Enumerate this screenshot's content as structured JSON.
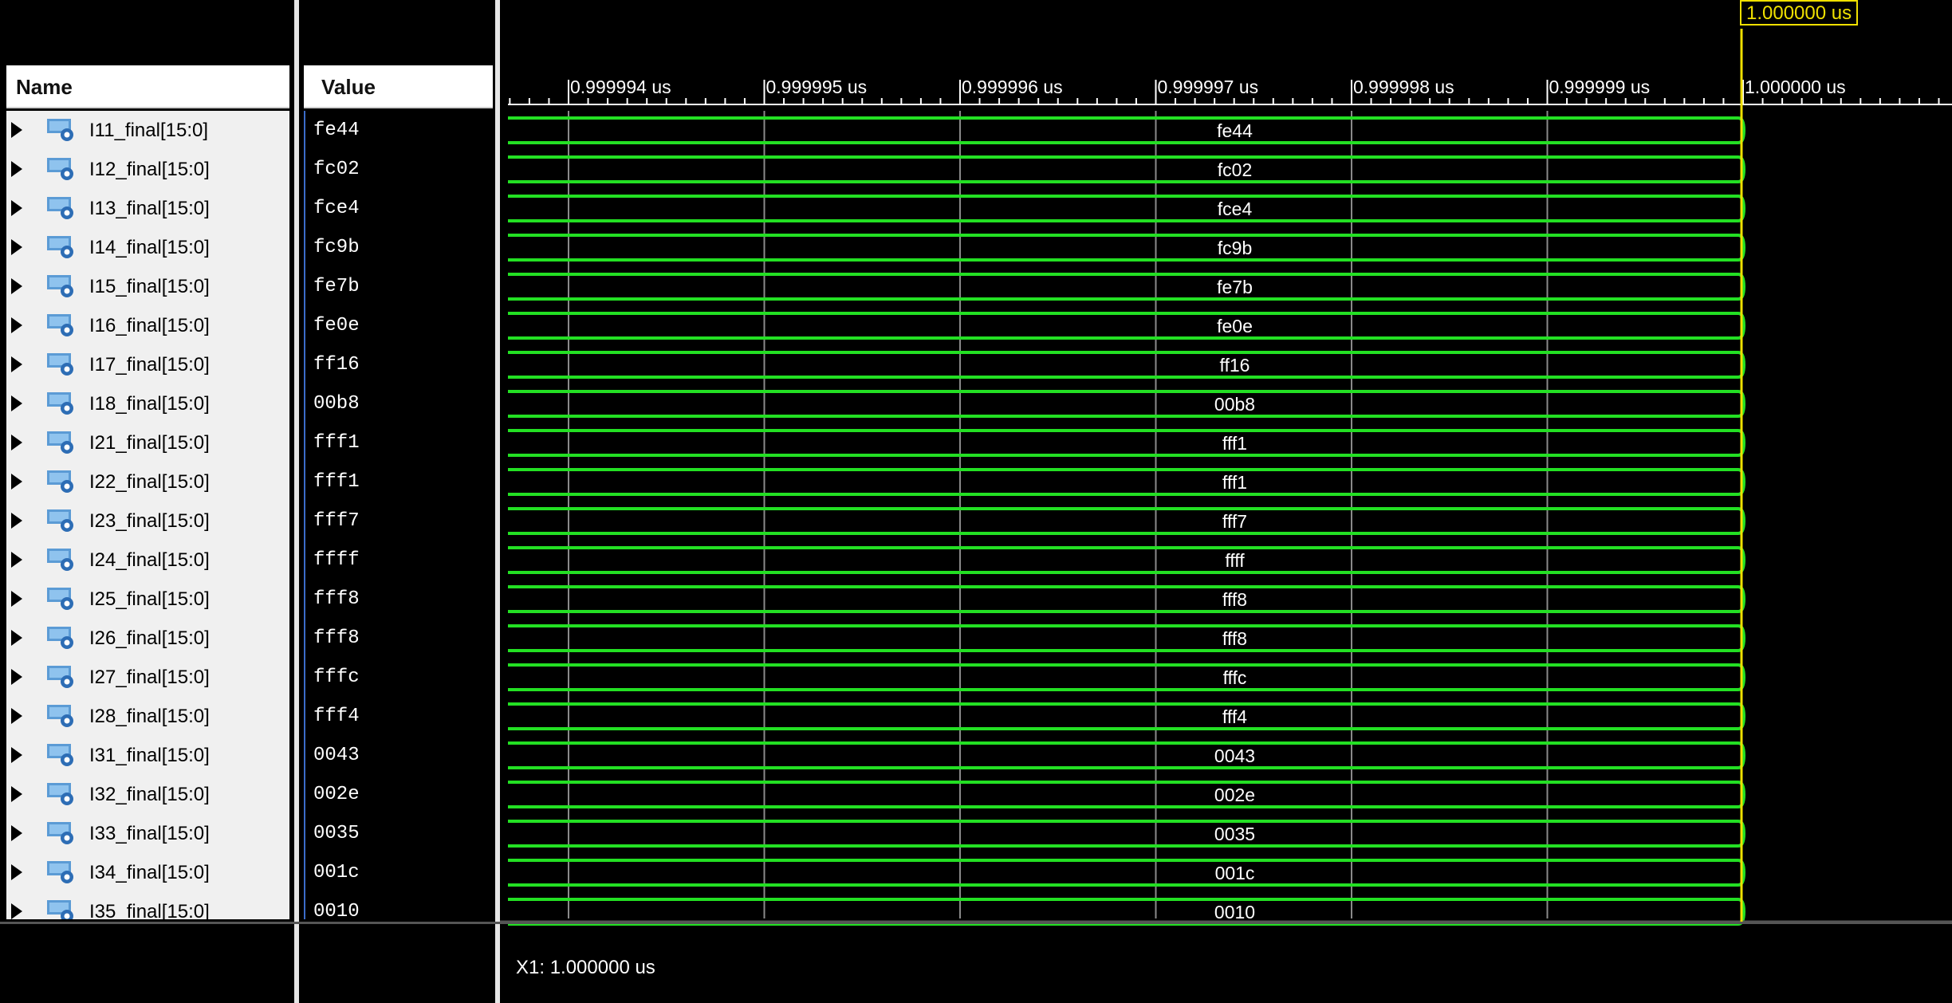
{
  "header": {
    "name_label": "Name",
    "value_label": "Value"
  },
  "colors": {
    "waveform": "#23e023",
    "cursor": "#f0e000",
    "background": "#000000"
  },
  "timeline": {
    "unit": "us",
    "ticks": [
      "0.999994 us",
      "0.999995 us",
      "0.999996 us",
      "0.999997 us",
      "0.999998 us",
      "0.999999 us",
      "1.000000 us"
    ],
    "cursor_label": "1.000000 us"
  },
  "signals": [
    {
      "name": "I11_final[15:0]",
      "value": "fe44",
      "icon": "bus-signal-icon"
    },
    {
      "name": "I12_final[15:0]",
      "value": "fc02",
      "icon": "bus-signal-icon"
    },
    {
      "name": "I13_final[15:0]",
      "value": "fce4",
      "icon": "bus-signal-icon"
    },
    {
      "name": "I14_final[15:0]",
      "value": "fc9b",
      "icon": "bus-signal-icon"
    },
    {
      "name": "I15_final[15:0]",
      "value": "fe7b",
      "icon": "bus-signal-icon"
    },
    {
      "name": "I16_final[15:0]",
      "value": "fe0e",
      "icon": "bus-signal-icon"
    },
    {
      "name": "I17_final[15:0]",
      "value": "ff16",
      "icon": "bus-signal-icon"
    },
    {
      "name": "I18_final[15:0]",
      "value": "00b8",
      "icon": "bus-signal-icon"
    },
    {
      "name": "I21_final[15:0]",
      "value": "fff1",
      "icon": "bus-signal-icon"
    },
    {
      "name": "I22_final[15:0]",
      "value": "fff1",
      "icon": "bus-signal-icon"
    },
    {
      "name": "I23_final[15:0]",
      "value": "fff7",
      "icon": "bus-signal-icon"
    },
    {
      "name": "I24_final[15:0]",
      "value": "ffff",
      "icon": "bus-signal-icon"
    },
    {
      "name": "I25_final[15:0]",
      "value": "fff8",
      "icon": "bus-signal-icon"
    },
    {
      "name": "I26_final[15:0]",
      "value": "fff8",
      "icon": "bus-signal-icon"
    },
    {
      "name": "I27_final[15:0]",
      "value": "fffc",
      "icon": "bus-signal-icon"
    },
    {
      "name": "I28_final[15:0]",
      "value": "fff4",
      "icon": "bus-signal-icon"
    },
    {
      "name": "I31_final[15:0]",
      "value": "0043",
      "icon": "bus-signal-icon"
    },
    {
      "name": "I32_final[15:0]",
      "value": "002e",
      "icon": "bus-signal-icon"
    },
    {
      "name": "I33_final[15:0]",
      "value": "0035",
      "icon": "bus-signal-icon"
    },
    {
      "name": "I34_final[15:0]",
      "value": "001c",
      "icon": "bus-signal-icon"
    },
    {
      "name": "I35_final[15:0]",
      "value": "0010",
      "icon": "bus-signal-icon"
    }
  ],
  "footer": {
    "cursor_readout": "X1: 1.000000 us"
  }
}
